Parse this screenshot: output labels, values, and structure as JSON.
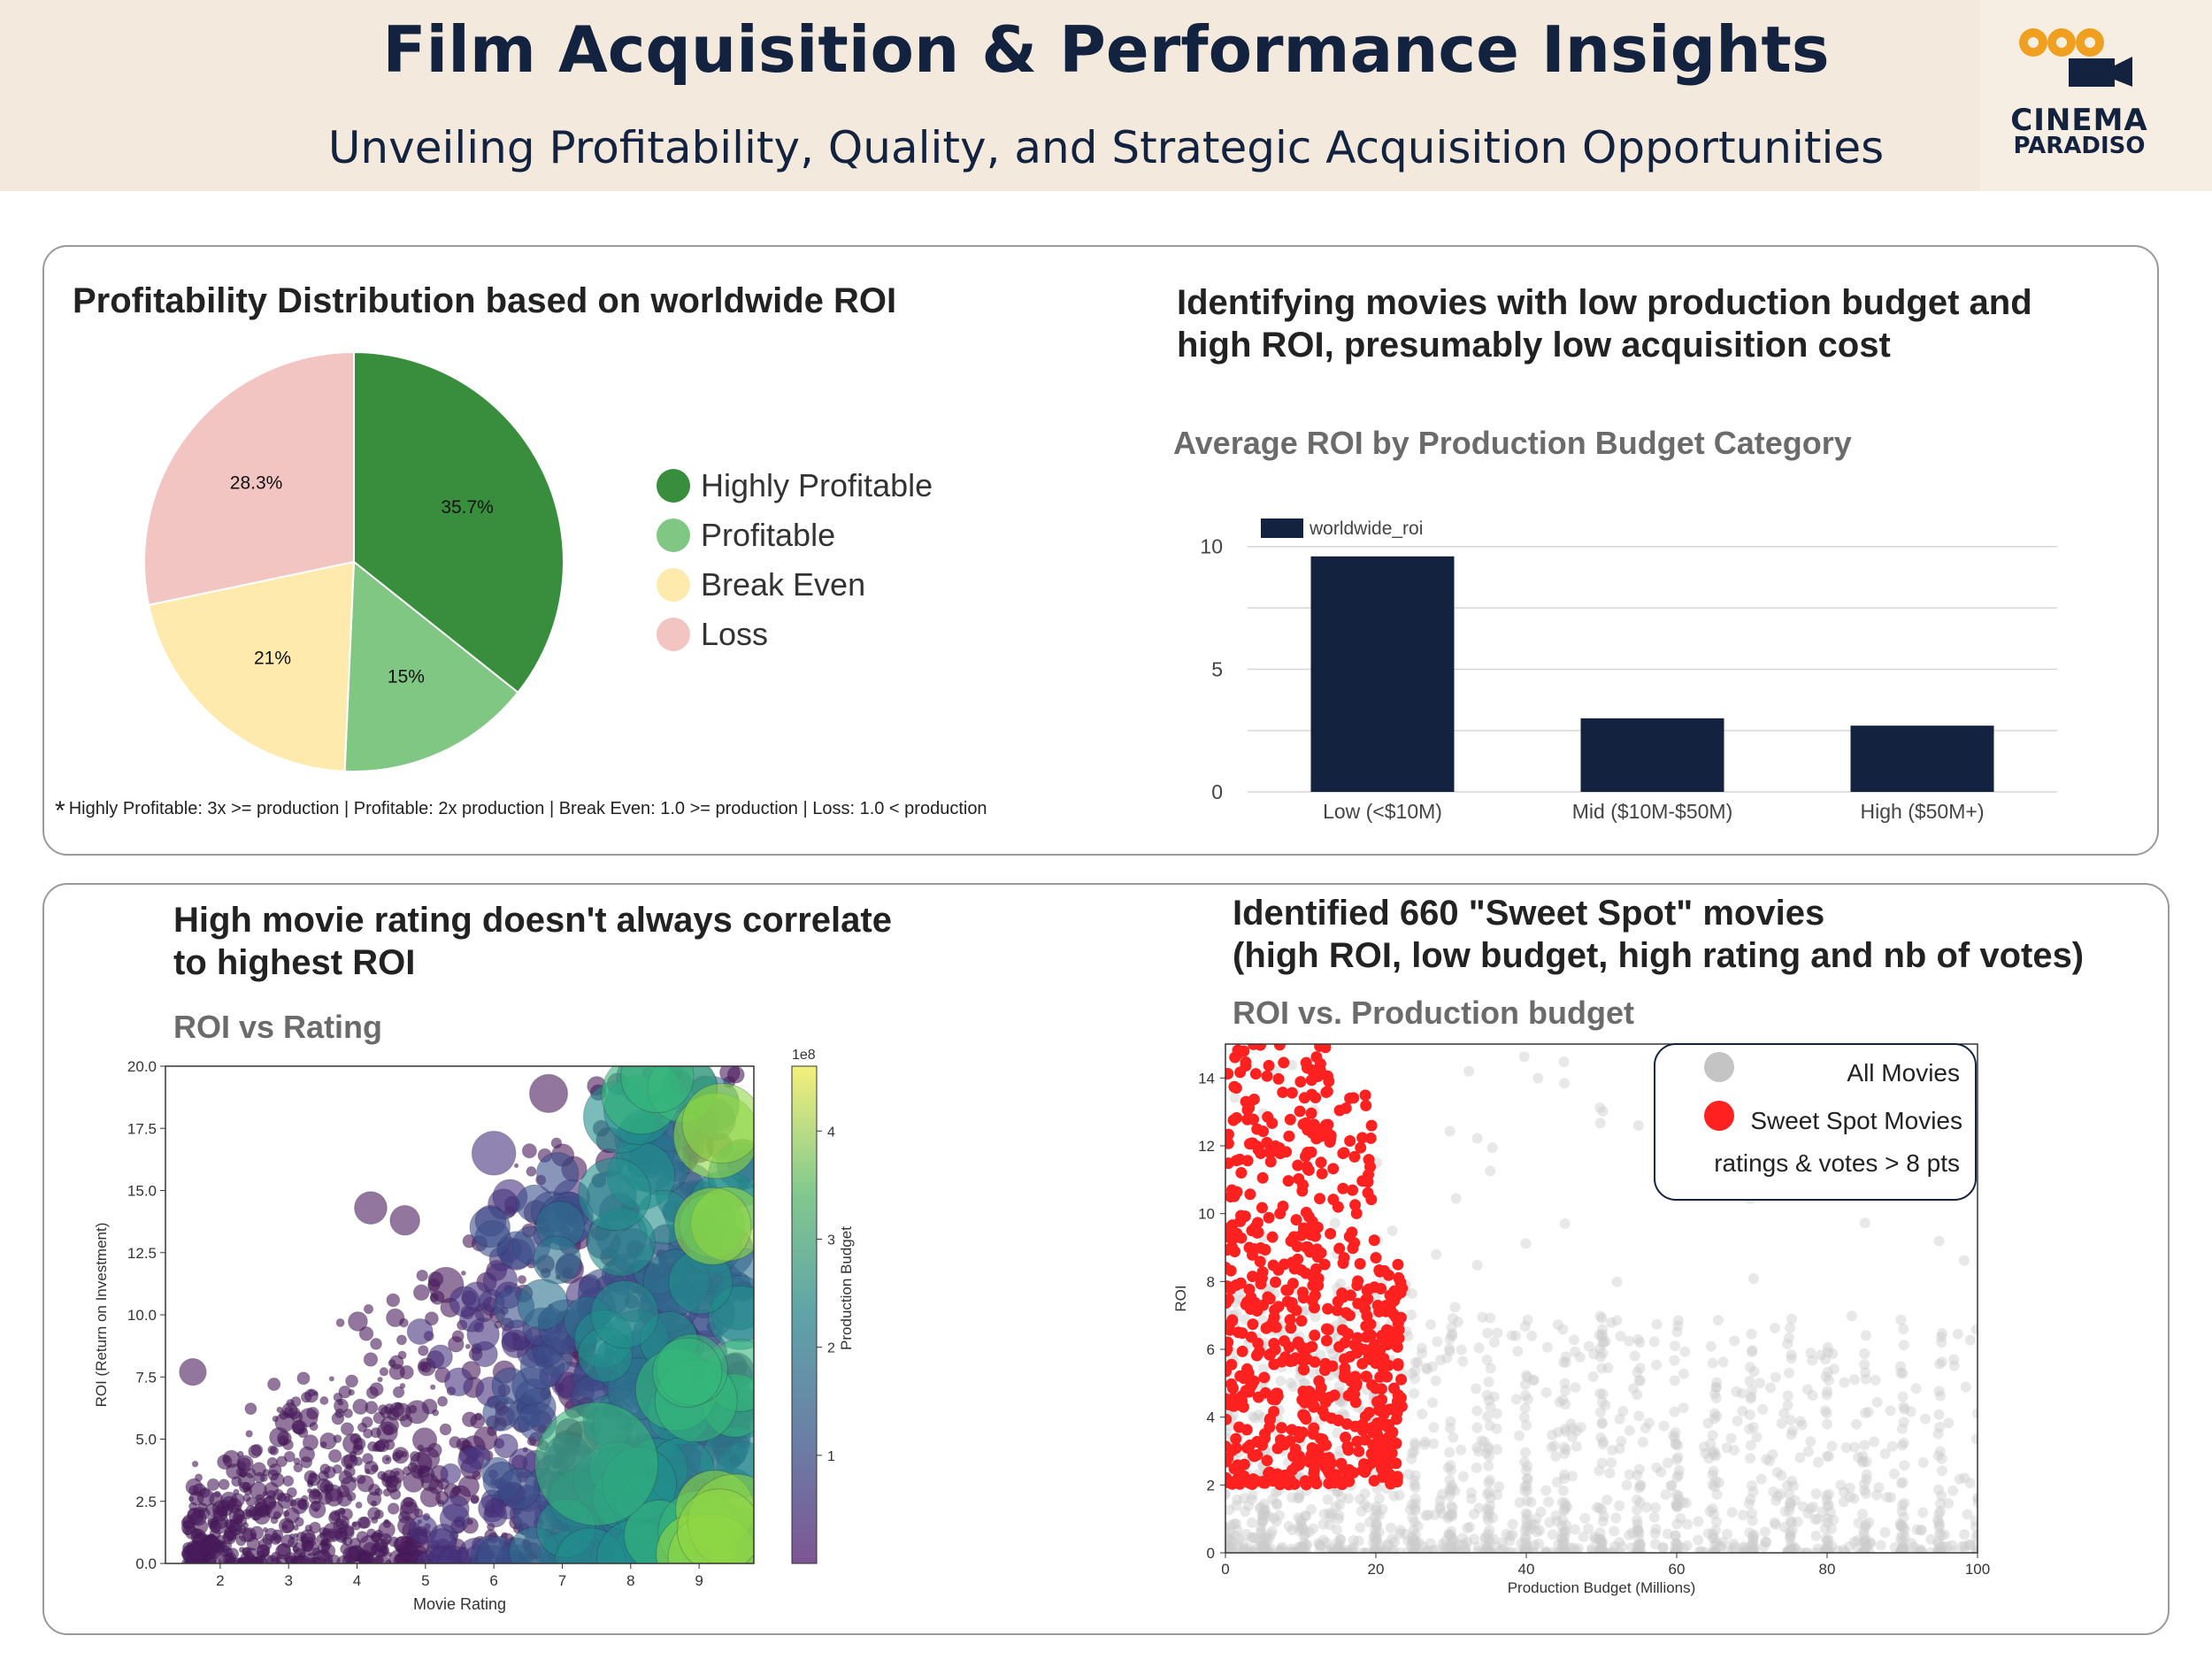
{
  "header": {
    "title": "Film Acquisition & Performance Insights",
    "subtitle": "Unveiling Profitability, Quality, and Strategic Acquisition Opportunities",
    "logo_line1": "CINEMA",
    "logo_line2": "PARADISO"
  },
  "colors": {
    "navy": "#13233f",
    "highly_profitable": "#388e3c",
    "profitable": "#81c784",
    "break_even": "#ffeaae",
    "loss": "#f2c4c2",
    "sweet_spot": "#ff2020",
    "all_movies": "#cccccc"
  },
  "panel1": {
    "title": "Profitability Distribution based on worldwide ROI",
    "footnote_star": "*",
    "footnote": "Highly Profitable: 3x >= production | Profitable: 2x production | Break Even: 1.0  >= production | Loss: 1.0  < production"
  },
  "panel2": {
    "title_line1": "Identifying movies with low production budget and",
    "title_line2": "high ROI, presumably low acquisition cost",
    "chart_title": "Average ROI by Production Budget Category",
    "legend_label": "worldwide_roi"
  },
  "panel3": {
    "title_line1": "High movie rating doesn't always correlate",
    "title_line2": "to highest ROI",
    "chart_title": "ROI vs Rating",
    "xlabel": "Movie Rating",
    "ylabel": "ROI (Return on Investment)",
    "colorbar_label": "Production Budget",
    "colorbar_exp": "1e8"
  },
  "panel4": {
    "title_line1": "Identified 660 \"Sweet Spot\" movies",
    "title_line2": "(high ROI, low budget, high rating and nb of votes)",
    "chart_title": "ROI vs. Production budget",
    "xlabel": "Production Budget (Millions)",
    "ylabel": "ROI",
    "legend_all": "All Movies",
    "legend_sweet": "Sweet Spot Movies",
    "legend_note": "ratings & votes > 8 pts"
  },
  "chart_data": [
    {
      "type": "pie",
      "categories": [
        "Highly Profitable",
        "Profitable",
        "Break Even",
        "Loss"
      ],
      "values": [
        35.7,
        15,
        21,
        28.3
      ],
      "labels": [
        "35.7%",
        "15%",
        "21%",
        "28.3%"
      ],
      "colors": [
        "#388e3c",
        "#81c784",
        "#ffeaae",
        "#f2c4c2"
      ],
      "legend": "right"
    },
    {
      "type": "bar",
      "categories": [
        "Low (<$10M)",
        "Mid ($10M-$50M)",
        "High ($50M+)"
      ],
      "series": [
        {
          "name": "worldwide_roi",
          "values": [
            9.6,
            3.0,
            2.7
          ]
        }
      ],
      "ylim": [
        0,
        11
      ],
      "yticks": [
        0,
        5,
        10
      ],
      "grid": true,
      "legend": "top-left"
    },
    {
      "type": "scatter",
      "xlabel": "Movie Rating",
      "ylabel": "ROI (Return on Investment)",
      "xlim": [
        1.2,
        9.8
      ],
      "ylim": [
        0,
        20
      ],
      "xticks": [
        2,
        3,
        4,
        5,
        6,
        7,
        8,
        9
      ],
      "yticks": [
        "0.0",
        "2.5",
        "5.0",
        "7.5",
        "10.0",
        "12.5",
        "15.0",
        "17.5",
        "20.0"
      ],
      "colorbar": {
        "label": "Production Budget",
        "exponent": "1e8",
        "ticks": [
          1,
          2,
          3,
          4
        ],
        "range": [
          0,
          4.6
        ]
      },
      "sample_points": [
        {
          "x": 1.6,
          "y": 7.7,
          "budget": 0.2
        },
        {
          "x": 4.2,
          "y": 14.3,
          "budget": 0.4
        },
        {
          "x": 4.7,
          "y": 13.8,
          "budget": 0.3
        },
        {
          "x": 5.3,
          "y": 11.2,
          "budget": 0.5
        },
        {
          "x": 6.0,
          "y": 16.5,
          "budget": 0.8
        },
        {
          "x": 6.8,
          "y": 18.9,
          "budget": 0.6
        },
        {
          "x": 7.5,
          "y": 4.0,
          "budget": 3.6
        },
        {
          "x": 8.1,
          "y": 5.5,
          "budget": 2.4
        },
        {
          "x": 8.5,
          "y": 9.0,
          "budget": 1.6
        },
        {
          "x": 9.2,
          "y": 5.0,
          "budget": 1.9
        },
        {
          "x": 9.3,
          "y": 1.5,
          "budget": 1.0
        }
      ]
    },
    {
      "type": "scatter",
      "xlabel": "Production Budget (Millions)",
      "ylabel": "ROI",
      "xlim": [
        0,
        100
      ],
      "ylim": [
        0,
        15
      ],
      "xticks": [
        0,
        20,
        40,
        60,
        80,
        100
      ],
      "yticks": [
        0,
        2,
        4,
        6,
        8,
        10,
        12,
        14
      ],
      "series": [
        {
          "name": "All Movies",
          "x_range": [
            0,
            100
          ],
          "y_range": [
            0,
            15
          ]
        },
        {
          "name": "Sweet Spot Movies",
          "count": 660,
          "x_range": [
            0,
            24
          ],
          "y_range": [
            2,
            15
          ]
        }
      ],
      "legend": "top-right"
    }
  ]
}
